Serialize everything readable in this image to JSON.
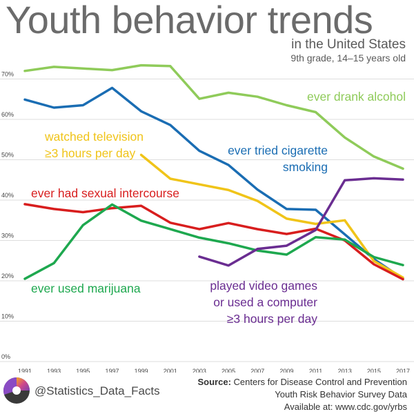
{
  "header": {
    "title": "Youth behavior trends",
    "subtitle_line1": "in the United States",
    "subtitle_line2": "9th grade, 14–15 years old"
  },
  "footer": {
    "handle": "@Statistics_Data_Facts",
    "source_label": "Source:",
    "source_line1": "Centers for Disease Control and Prevention",
    "source_line2": "Youth Risk Behavior Survey Data",
    "source_line3": "Available at: www.cdc.gov/yrbs",
    "logo_icon": "statistics-logo-icon"
  },
  "chart_data": {
    "type": "line",
    "title": "Youth behavior trends",
    "xlabel": "",
    "ylabel": "",
    "x": [
      1991,
      1993,
      1995,
      1997,
      1999,
      2001,
      2003,
      2005,
      2007,
      2009,
      2011,
      2013,
      2015,
      2017
    ],
    "xtick_labels": [
      "1991",
      "1993",
      "1995",
      "1997",
      "1999",
      "2001",
      "2003",
      "2005",
      "2007",
      "2009",
      "2011",
      "2013",
      "2015",
      "2017"
    ],
    "ylim": [
      0,
      75
    ],
    "yticks": [
      0,
      10,
      20,
      30,
      40,
      50,
      60,
      70
    ],
    "ytick_labels": [
      "0%",
      "10%",
      "20%",
      "30%",
      "40%",
      "50%",
      "60%",
      "70%"
    ],
    "grid": true,
    "legend": "none (direct labels)",
    "series": [
      {
        "name": "ever drank alcohol",
        "label_lines": [
          "ever drank alcohol"
        ],
        "color": "#8fcb5a",
        "values": [
          72.0,
          73.0,
          72.6,
          72.2,
          73.4,
          73.2,
          65.1,
          66.6,
          65.6,
          63.5,
          61.8,
          55.5,
          50.8,
          47.8
        ]
      },
      {
        "name": "ever tried cigarette smoking",
        "label_lines": [
          "ever tried cigarette",
          "smoking"
        ],
        "color": "#1a6db3",
        "values": [
          64.9,
          62.9,
          63.5,
          67.8,
          62.0,
          58.6,
          52.2,
          48.7,
          42.6,
          37.8,
          37.6,
          31.5,
          25.4,
          20.5
        ]
      },
      {
        "name": "watched television ≥3 hours per day",
        "label_lines": [
          "watched television",
          "≥3 hours per day"
        ],
        "color": "#f0c419",
        "values": [
          null,
          null,
          null,
          null,
          51.2,
          45.3,
          43.9,
          42.5,
          39.8,
          35.4,
          34.1,
          35.0,
          24.9,
          20.8
        ]
      },
      {
        "name": "ever had sexual intercourse",
        "label_lines": [
          "ever had sexual intercourse"
        ],
        "color": "#d81e1e",
        "values": [
          39.0,
          37.8,
          37.0,
          38.0,
          38.6,
          34.4,
          32.8,
          34.3,
          32.8,
          31.6,
          32.9,
          30.0,
          24.1,
          20.4
        ]
      },
      {
        "name": "ever used marijuana",
        "label_lines": [
          "ever used marijuana"
        ],
        "color": "#1ea84f",
        "values": [
          20.5,
          24.4,
          33.8,
          38.9,
          34.9,
          32.8,
          30.7,
          29.3,
          27.5,
          26.5,
          30.8,
          30.2,
          25.9,
          23.9
        ]
      },
      {
        "name": "played video games or used a computer ≥3 hours per day",
        "label_lines": [
          "played video games",
          "or used a computer",
          "≥3 hours per day"
        ],
        "color": "#6a2d91",
        "values": [
          null,
          null,
          null,
          null,
          null,
          null,
          26.0,
          23.8,
          27.9,
          28.7,
          32.6,
          44.9,
          45.4,
          45.1
        ]
      }
    ]
  }
}
